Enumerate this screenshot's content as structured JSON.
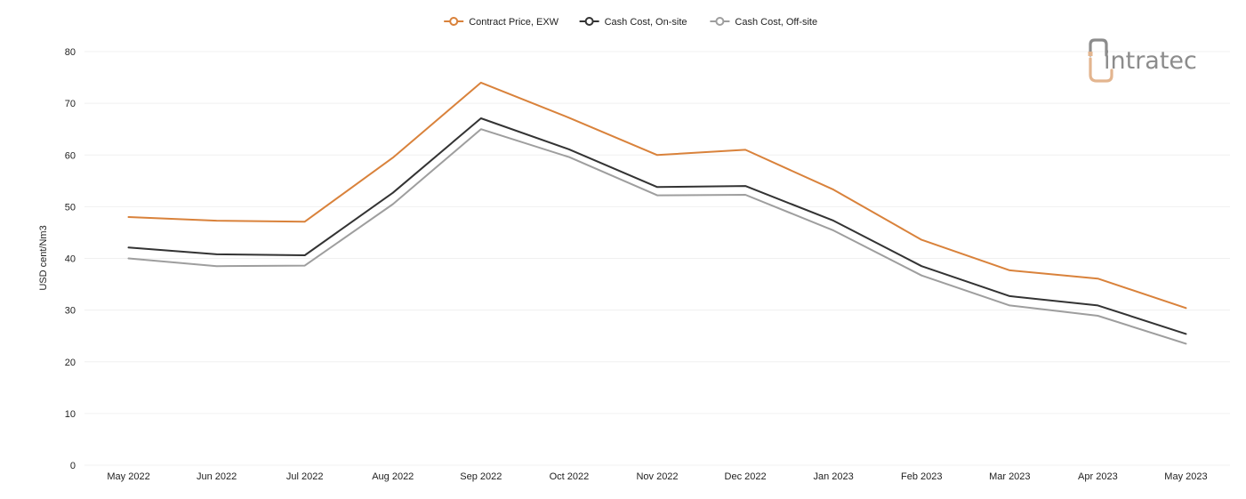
{
  "brand": {
    "logo_text": "intratec",
    "logo_color": "#8c8c8c",
    "logo_accent_color": "#e3b58f"
  },
  "chart_data": {
    "type": "line",
    "title": "",
    "xlabel": "",
    "ylabel": "USD cent/Nm3",
    "categories": [
      "May 2022",
      "Jun 2022",
      "Jul 2022",
      "Aug 2022",
      "Sep 2022",
      "Oct 2022",
      "Nov 2022",
      "Dec 2022",
      "Jan 2023",
      "Feb 2023",
      "Mar 2023",
      "Apr 2023",
      "May 2023"
    ],
    "ylim": [
      0,
      80
    ],
    "yticks": [
      0,
      10,
      20,
      30,
      40,
      50,
      60,
      70,
      80
    ],
    "grid": "horizontal",
    "legend_position": "top-center",
    "series": [
      {
        "name": "Contract Price, EXW",
        "color": "#d9823b",
        "values": [
          48.0,
          47.3,
          47.1,
          59.5,
          74.0,
          67.2,
          60.0,
          61.0,
          53.3,
          43.6,
          37.7,
          36.1,
          30.4
        ]
      },
      {
        "name": "Cash Cost, On-site",
        "color": "#333333",
        "values": [
          42.1,
          40.8,
          40.6,
          52.7,
          67.1,
          61.1,
          53.8,
          54.0,
          47.3,
          38.5,
          32.7,
          30.9,
          25.4
        ]
      },
      {
        "name": "Cash Cost, Off-site",
        "color": "#9e9e9e",
        "values": [
          40.0,
          38.5,
          38.6,
          50.5,
          65.0,
          59.6,
          52.2,
          52.3,
          45.4,
          36.7,
          30.9,
          28.9,
          23.5
        ]
      }
    ]
  }
}
